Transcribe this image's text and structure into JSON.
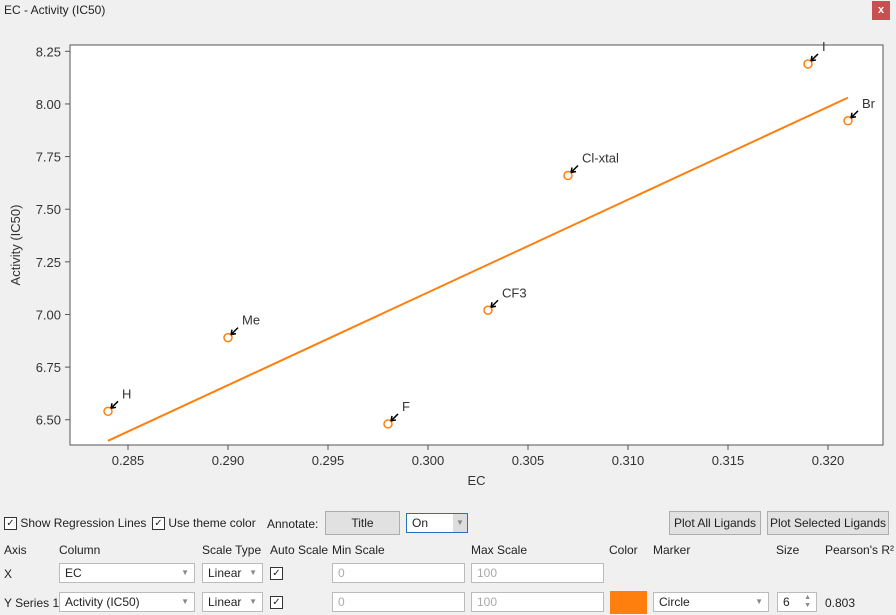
{
  "window": {
    "title": "EC - Activity (IC50)",
    "close_label": "x"
  },
  "chart_data": {
    "type": "scatter",
    "xlabel": "EC",
    "ylabel": "Activity (IC50)",
    "xlim": [
      0.2821,
      0.32275
    ],
    "ylim": [
      6.38,
      8.28
    ],
    "xticks": [
      0.285,
      0.29,
      0.295,
      0.3,
      0.305,
      0.31,
      0.315,
      0.32
    ],
    "xtick_labels": [
      "0.285",
      "0.290",
      "0.295",
      "0.300",
      "0.305",
      "0.310",
      "0.315",
      "0.320"
    ],
    "yticks": [
      6.5,
      6.75,
      7.0,
      7.25,
      7.5,
      7.75,
      8.0,
      8.25
    ],
    "ytick_labels": [
      "6.50",
      "6.75",
      "7.00",
      "7.25",
      "7.50",
      "7.75",
      "8.00",
      "8.25"
    ],
    "grid": false,
    "color": "#ff7f0e",
    "points": [
      {
        "label": "H",
        "x": 0.284,
        "y": 6.54
      },
      {
        "label": "Me",
        "x": 0.29,
        "y": 6.89
      },
      {
        "label": "F",
        "x": 0.298,
        "y": 6.48
      },
      {
        "label": "CF3",
        "x": 0.303,
        "y": 7.02
      },
      {
        "label": "Cl-xtal",
        "x": 0.307,
        "y": 7.66
      },
      {
        "label": "I",
        "x": 0.319,
        "y": 8.19
      },
      {
        "label": "Br",
        "x": 0.321,
        "y": 7.92
      }
    ],
    "regression": {
      "x": [
        0.284,
        0.321
      ],
      "y": [
        6.4,
        8.03
      ]
    }
  },
  "controls": {
    "show_regression": "Show Regression Lines",
    "use_theme": "Use theme color",
    "annotate_label": "Annotate:",
    "title_button": "Title",
    "annotate_value": "On",
    "plot_all": "Plot All Ligands",
    "plot_selected": "Plot Selected Ligands",
    "headers": [
      "Axis",
      "Column",
      "Scale Type",
      "Auto Scale",
      "Min Scale",
      "Max Scale",
      "Color",
      "Marker",
      "Size",
      "Pearson's R²"
    ],
    "rows": [
      {
        "axis": "X",
        "column": "EC",
        "scale": "Linear",
        "min": "0",
        "max": "100"
      },
      {
        "axis": "Y Series 1",
        "column": "Activity (IC50)",
        "scale": "Linear",
        "min": "0",
        "max": "100",
        "color": "#ff7f0e",
        "marker": "Circle",
        "size": "6",
        "r2": "0.803"
      }
    ]
  }
}
